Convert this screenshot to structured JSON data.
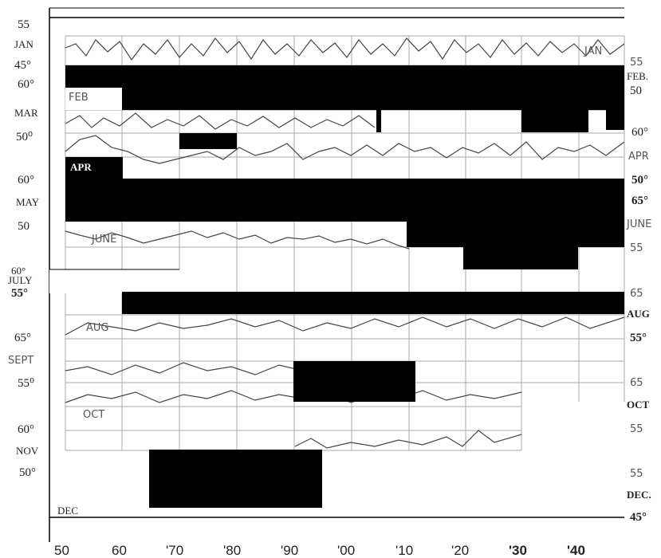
{
  "left_labels": [
    "55",
    "JAN",
    "45°",
    "60°",
    "MAR",
    "50⁰",
    "60°",
    "MAY",
    "50",
    "60°",
    "JULY",
    "55°",
    "65°",
    "SEPT",
    "55⁰",
    "60°",
    "NOV",
    "50°",
    "DEC"
  ],
  "right_labels": [
    "55",
    "FEB.",
    "50",
    "60°",
    "APR",
    "50°",
    "65°",
    "JUNE",
    "55",
    "65",
    "AUG",
    "55°",
    "65",
    "OCT",
    "55",
    "55",
    "DEC.",
    "45°"
  ],
  "panel_labels": [
    "JAN",
    "FEB",
    "APR",
    "JUNE",
    "AUG",
    "OCT"
  ],
  "x_axis": [
    "50",
    "60",
    "'70",
    "'80",
    "'90",
    "'00",
    "'10",
    "'20",
    "'30",
    "'40"
  ]
}
